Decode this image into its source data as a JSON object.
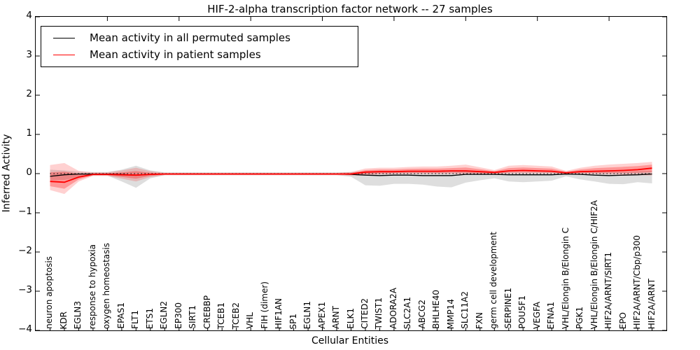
{
  "title": "HIF-2-alpha transcription factor network -- 27 samples",
  "legend": {
    "items": [
      {
        "label": "Mean activity in all permuted samples",
        "color": "#000000"
      },
      {
        "label": "Mean activity in patient samples",
        "color": "#ff0000"
      }
    ]
  },
  "colors": {
    "permuted_line": "#000000",
    "patient_line": "#ff0000",
    "permuted_band": "#c8c8c8",
    "patient_band": "#ff0000",
    "axis": "#000000"
  },
  "chart_data": {
    "type": "line",
    "title": "HIF-2-alpha transcription factor network -- 27 samples",
    "xlabel": "Cellular Entities",
    "ylabel": "Inferred Activity",
    "ylim": [
      -4,
      4
    ],
    "yticks": [
      4,
      3,
      2,
      1,
      0,
      -1,
      -2,
      -3,
      -4
    ],
    "ytick_labels": [
      "4",
      "3",
      "2",
      "1",
      "0",
      "−1",
      "−2",
      "−3",
      "−4"
    ],
    "grid": false,
    "legend_position": "upper left",
    "categories": [
      "neuron apoptosis",
      "KDR",
      "EGLN3",
      "response to hypoxia",
      "oxygen homeostasis",
      "EPAS1",
      "FLT1",
      "ETS1",
      "EGLN2",
      "EP300",
      "SIRT1",
      "CREBBP",
      "TCEB1",
      "TCEB2",
      "VHL",
      "FIH (dimer)",
      "HIF1AN",
      "SP1",
      "EGLN1",
      "APEX1",
      "ARNT",
      "ELK1",
      "CITED2",
      "TWIST1",
      "ADORA2A",
      "SLC2A1",
      "ABCG2",
      "BHLHE40",
      "MMP14",
      "SLC11A2",
      "FXN",
      "germ cell development",
      "SERPINE1",
      "POU5F1",
      "VEGFA",
      "EFNA1",
      "VHL/Elongin B/Elongin C",
      "PGK1",
      "VHL/Elongin B/Elongin C/HIF2A",
      "HIF2A/ARNT/SIRT1",
      "EPO",
      "HIF2A/ARNT/Cbp/p300",
      "HIF2A/ARNT"
    ],
    "series": [
      {
        "name": "Mean activity in all permuted samples",
        "color": "#000000",
        "mean": [
          -0.07,
          -0.03,
          -0.01,
          -0.01,
          -0.01,
          -0.02,
          -0.04,
          -0.02,
          -0.01,
          -0.01,
          -0.01,
          -0.01,
          -0.01,
          -0.01,
          -0.01,
          -0.01,
          -0.01,
          -0.01,
          -0.01,
          -0.01,
          -0.01,
          -0.02,
          -0.04,
          -0.05,
          -0.04,
          -0.04,
          -0.05,
          -0.05,
          -0.05,
          -0.02,
          -0.02,
          -0.02,
          -0.03,
          -0.03,
          -0.03,
          -0.03,
          -0.01,
          -0.02,
          -0.04,
          -0.05,
          -0.04,
          -0.03,
          -0.01
        ],
        "band_hi": [
          0.1,
          0.08,
          0.05,
          0.04,
          0.04,
          0.1,
          0.2,
          0.08,
          0.03,
          0.03,
          0.03,
          0.03,
          0.03,
          0.03,
          0.03,
          0.03,
          0.03,
          0.03,
          0.03,
          0.03,
          0.03,
          0.04,
          0.05,
          0.05,
          0.05,
          0.05,
          0.05,
          0.05,
          0.05,
          0.06,
          0.05,
          0.03,
          0.04,
          0.04,
          0.04,
          0.04,
          0.03,
          0.04,
          0.05,
          0.05,
          0.05,
          0.06,
          0.07
        ],
        "band_lo": [
          -0.17,
          -0.16,
          -0.09,
          -0.05,
          -0.05,
          -0.2,
          -0.36,
          -0.12,
          -0.04,
          -0.04,
          -0.04,
          -0.04,
          -0.04,
          -0.04,
          -0.04,
          -0.04,
          -0.04,
          -0.04,
          -0.04,
          -0.04,
          -0.04,
          -0.08,
          -0.3,
          -0.31,
          -0.26,
          -0.26,
          -0.28,
          -0.33,
          -0.35,
          -0.23,
          -0.17,
          -0.12,
          -0.2,
          -0.22,
          -0.2,
          -0.18,
          -0.07,
          -0.15,
          -0.2,
          -0.26,
          -0.27,
          -0.22,
          -0.25
        ]
      },
      {
        "name": "Mean activity in patient samples",
        "color": "#ff0000",
        "mean": [
          -0.2,
          -0.22,
          -0.09,
          -0.02,
          -0.02,
          -0.03,
          -0.04,
          -0.02,
          -0.01,
          -0.01,
          -0.01,
          -0.01,
          -0.01,
          -0.01,
          -0.01,
          -0.01,
          -0.01,
          -0.01,
          -0.01,
          -0.01,
          -0.01,
          -0.01,
          0.04,
          0.05,
          0.05,
          0.06,
          0.06,
          0.06,
          0.07,
          0.07,
          0.05,
          0.03,
          0.07,
          0.08,
          0.07,
          0.06,
          0.02,
          0.05,
          0.06,
          0.07,
          0.08,
          0.1,
          0.14
        ],
        "band_hi": [
          0.22,
          0.27,
          0.07,
          0.03,
          0.03,
          0.08,
          0.15,
          0.06,
          0.02,
          0.02,
          0.02,
          0.02,
          0.02,
          0.02,
          0.02,
          0.02,
          0.02,
          0.02,
          0.02,
          0.02,
          0.02,
          0.04,
          0.13,
          0.15,
          0.15,
          0.17,
          0.18,
          0.18,
          0.2,
          0.23,
          0.16,
          0.09,
          0.2,
          0.22,
          0.2,
          0.18,
          0.07,
          0.15,
          0.2,
          0.23,
          0.25,
          0.27,
          0.3
        ],
        "band_lo": [
          -0.42,
          -0.52,
          -0.2,
          -0.06,
          -0.06,
          -0.13,
          -0.2,
          -0.09,
          -0.04,
          -0.04,
          -0.04,
          -0.04,
          -0.04,
          -0.04,
          -0.04,
          -0.04,
          -0.04,
          -0.04,
          -0.04,
          -0.04,
          -0.04,
          -0.05,
          -0.05,
          -0.02,
          -0.01,
          -0.01,
          -0.01,
          -0.01,
          -0.01,
          -0.02,
          -0.02,
          -0.02,
          0.0,
          0.0,
          0.0,
          0.0,
          -0.02,
          -0.01,
          -0.01,
          -0.02,
          -0.03,
          -0.04,
          -0.05
        ]
      }
    ],
    "zero_reference_line": 0
  }
}
